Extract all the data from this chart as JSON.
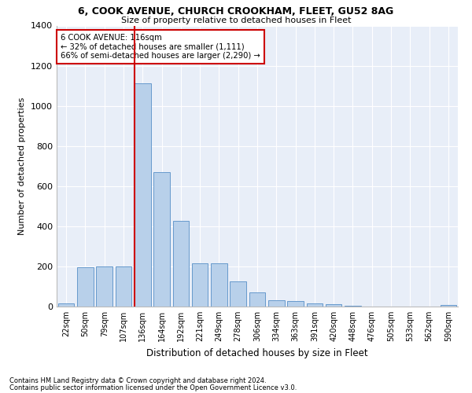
{
  "title1": "6, COOK AVENUE, CHURCH CROOKHAM, FLEET, GU52 8AG",
  "title2": "Size of property relative to detached houses in Fleet",
  "xlabel": "Distribution of detached houses by size in Fleet",
  "ylabel": "Number of detached properties",
  "bar_labels": [
    "22sqm",
    "50sqm",
    "79sqm",
    "107sqm",
    "136sqm",
    "164sqm",
    "192sqm",
    "221sqm",
    "249sqm",
    "278sqm",
    "306sqm",
    "334sqm",
    "363sqm",
    "391sqm",
    "420sqm",
    "448sqm",
    "476sqm",
    "505sqm",
    "533sqm",
    "562sqm",
    "590sqm"
  ],
  "bar_values": [
    15,
    195,
    200,
    200,
    1111,
    670,
    425,
    215,
    215,
    125,
    70,
    30,
    28,
    15,
    12,
    5,
    0,
    0,
    0,
    0,
    8
  ],
  "bar_color": "#b8d0ea",
  "bar_edge_color": "#6699cc",
  "vline_index": 4,
  "marker_label": "6 COOK AVENUE: 116sqm",
  "annotation_line1": "← 32% of detached houses are smaller (1,111)",
  "annotation_line2": "66% of semi-detached houses are larger (2,290) →",
  "vline_color": "#cc0000",
  "box_edge_color": "#cc0000",
  "bg_color": "#e8eef8",
  "ylim": [
    0,
    1400
  ],
  "yticks": [
    0,
    200,
    400,
    600,
    800,
    1000,
    1200,
    1400
  ],
  "footnote1": "Contains HM Land Registry data © Crown copyright and database right 2024.",
  "footnote2": "Contains public sector information licensed under the Open Government Licence v3.0."
}
